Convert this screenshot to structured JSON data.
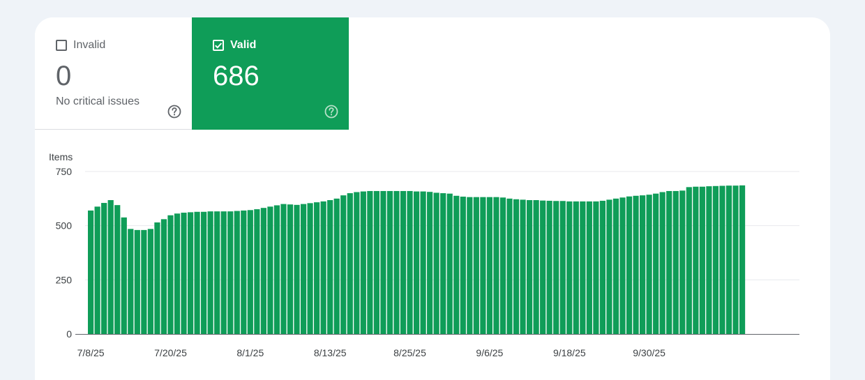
{
  "tiles": {
    "invalid": {
      "label": "Invalid",
      "count": "0",
      "subtitle": "No critical issues",
      "checked": false
    },
    "valid": {
      "label": "Valid",
      "count": "686",
      "checked": true
    }
  },
  "colors": {
    "valid": "#0f9d58",
    "page_background": "#eff3f8",
    "gridline": "#e8eaed",
    "axis": "#5f6368"
  },
  "icons": {
    "help": "help-circle-icon",
    "check": "checkmark-icon"
  },
  "chart_data": {
    "type": "bar",
    "ylabel": "Items",
    "ylim": [
      0,
      750
    ],
    "yticks": [
      0,
      250,
      500,
      750
    ],
    "grid": true,
    "xtick_labels": [
      "7/8/25",
      "7/20/25",
      "8/1/25",
      "8/13/25",
      "8/25/25",
      "9/6/25",
      "9/18/25",
      "9/30/25"
    ],
    "xtick_interval_days": 12,
    "x_start": "2025-07-08",
    "series": [
      {
        "color": "#0f9d58",
        "values": [
          570,
          588,
          605,
          618,
          595,
          538,
          485,
          480,
          480,
          485,
          515,
          530,
          548,
          556,
          560,
          562,
          564,
          564,
          566,
          566,
          566,
          566,
          568,
          570,
          572,
          576,
          582,
          588,
          594,
          600,
          598,
          596,
          600,
          604,
          608,
          612,
          618,
          625,
          640,
          650,
          655,
          658,
          660,
          660,
          660,
          660,
          660,
          660,
          660,
          658,
          658,
          656,
          652,
          650,
          648,
          638,
          634,
          632,
          632,
          632,
          632,
          632,
          630,
          625,
          622,
          620,
          618,
          618,
          616,
          615,
          614,
          614,
          612,
          612,
          612,
          612,
          612,
          615,
          620,
          625,
          630,
          635,
          638,
          640,
          643,
          648,
          655,
          660,
          660,
          662,
          678,
          680,
          680,
          682,
          683,
          684,
          685,
          685,
          686
        ]
      }
    ]
  }
}
